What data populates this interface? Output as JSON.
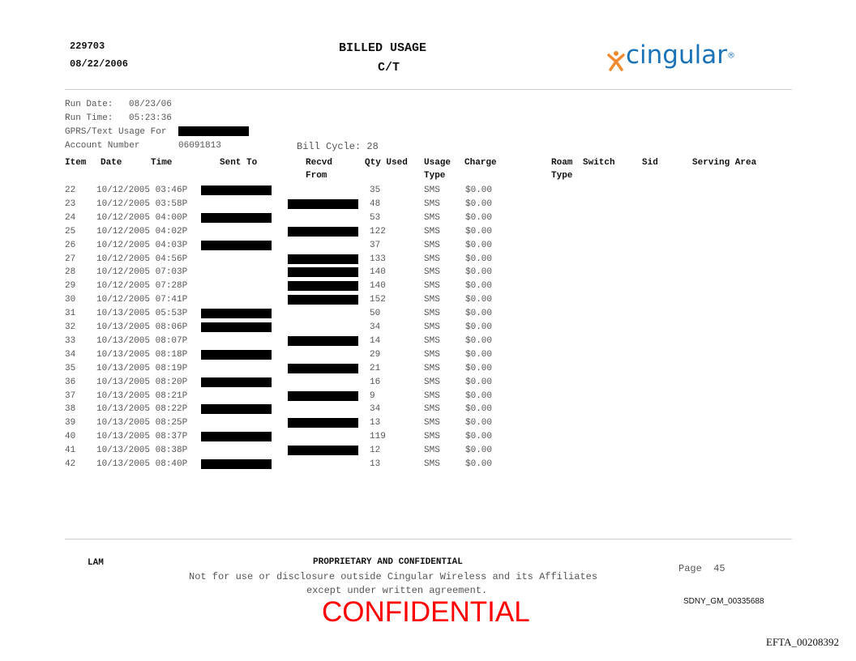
{
  "header": {
    "id": "229703",
    "date": "08/22/2006",
    "title": "BILLED USAGE",
    "subtitle": "C/T",
    "logo_text": "cingular",
    "logo_mark": "®",
    "brand_colors": {
      "blue": "#1a73b8",
      "orange": "#f28a30"
    }
  },
  "meta": {
    "run_date_label": "Run Date:",
    "run_date": "08/23/06",
    "run_time_label": "Run Time:",
    "run_time": "05:23:36",
    "usage_for_label": "GPRS/Text Usage For",
    "account_label": "Account Number",
    "account_number": "06091813",
    "bill_cycle": "Bill Cycle: 28"
  },
  "columns": {
    "item": "Item",
    "date": "Date",
    "time": "Time",
    "sent_to": "Sent To",
    "recvd": "Recvd",
    "recvd2": "From",
    "qty": "Qty Used",
    "usage": "Usage",
    "usage2": "Type",
    "charge": "Charge",
    "roam": "Roam",
    "roam2": "Type",
    "switch": "Switch",
    "sid": "Sid",
    "serving": "Serving Area"
  },
  "rows": [
    {
      "item": "22",
      "datetime": "10/12/2005 03:46P",
      "redacted": "sent",
      "qty": "35",
      "type": "SMS",
      "charge": "$0.00"
    },
    {
      "item": "23",
      "datetime": "10/12/2005 03:58P",
      "redacted": "recvd",
      "qty": "48",
      "type": "SMS",
      "charge": "$0.00"
    },
    {
      "item": "24",
      "datetime": "10/12/2005 04:00P",
      "redacted": "sent",
      "qty": "53",
      "type": "SMS",
      "charge": "$0.00"
    },
    {
      "item": "25",
      "datetime": "10/12/2005 04:02P",
      "redacted": "recvd",
      "qty": "122",
      "type": "SMS",
      "charge": "$0.00"
    },
    {
      "item": "26",
      "datetime": "10/12/2005 04:03P",
      "redacted": "sent",
      "qty": "37",
      "type": "SMS",
      "charge": "$0.00"
    },
    {
      "item": "27",
      "datetime": "10/12/2005 04:56P",
      "redacted": "recvd",
      "qty": "133",
      "type": "SMS",
      "charge": "$0.00"
    },
    {
      "item": "28",
      "datetime": "10/12/2005 07:03P",
      "redacted": "recvd",
      "qty": "140",
      "type": "SMS",
      "charge": "$0.00"
    },
    {
      "item": "29",
      "datetime": "10/12/2005 07:28P",
      "redacted": "recvd",
      "qty": "140",
      "type": "SMS",
      "charge": "$0.00"
    },
    {
      "item": "30",
      "datetime": "10/12/2005 07:41P",
      "redacted": "recvd",
      "qty": "152",
      "type": "SMS",
      "charge": "$0.00"
    },
    {
      "item": "31",
      "datetime": "10/13/2005 05:53P",
      "redacted": "sent",
      "qty": "50",
      "type": "SMS",
      "charge": "$0.00"
    },
    {
      "item": "32",
      "datetime": "10/13/2005 08:06P",
      "redacted": "sent",
      "qty": "34",
      "type": "SMS",
      "charge": "$0.00"
    },
    {
      "item": "33",
      "datetime": "10/13/2005 08:07P",
      "redacted": "recvd",
      "qty": "14",
      "type": "SMS",
      "charge": "$0.00"
    },
    {
      "item": "34",
      "datetime": "10/13/2005 08:18P",
      "redacted": "sent",
      "qty": "29",
      "type": "SMS",
      "charge": "$0.00"
    },
    {
      "item": "35",
      "datetime": "10/13/2005 08:19P",
      "redacted": "recvd",
      "qty": "21",
      "type": "SMS",
      "charge": "$0.00"
    },
    {
      "item": "36",
      "datetime": "10/13/2005 08:20P",
      "redacted": "sent",
      "qty": "16",
      "type": "SMS",
      "charge": "$0.00"
    },
    {
      "item": "37",
      "datetime": "10/13/2005 08:21P",
      "redacted": "recvd",
      "qty": "9",
      "type": "SMS",
      "charge": "$0.00"
    },
    {
      "item": "38",
      "datetime": "10/13/2005 08:22P",
      "redacted": "sent",
      "qty": "34",
      "type": "SMS",
      "charge": "$0.00"
    },
    {
      "item": "39",
      "datetime": "10/13/2005 08:25P",
      "redacted": "recvd",
      "qty": "13",
      "type": "SMS",
      "charge": "$0.00"
    },
    {
      "item": "40",
      "datetime": "10/13/2005 08:37P",
      "redacted": "sent",
      "qty": "119",
      "type": "SMS",
      "charge": "$0.00"
    },
    {
      "item": "41",
      "datetime": "10/13/2005 08:38P",
      "redacted": "recvd",
      "qty": "12",
      "type": "SMS",
      "charge": "$0.00"
    },
    {
      "item": "42",
      "datetime": "10/13/2005 08:40P",
      "redacted": "sent",
      "qty": "13",
      "type": "SMS",
      "charge": "$0.00"
    }
  ],
  "footer": {
    "left": "LAM",
    "heading": "PROPRIETARY AND CONFIDENTIAL",
    "line1": "Not for use or disclosure outside Cingular Wireless and its Affiliates",
    "line2": "except under written agreement.",
    "page": "Page  45",
    "stamp": "CONFIDENTIAL",
    "stamp_color": "#ff0000",
    "bates": "SDNY_GM_00335688",
    "efta": "EFTA_00208392"
  }
}
